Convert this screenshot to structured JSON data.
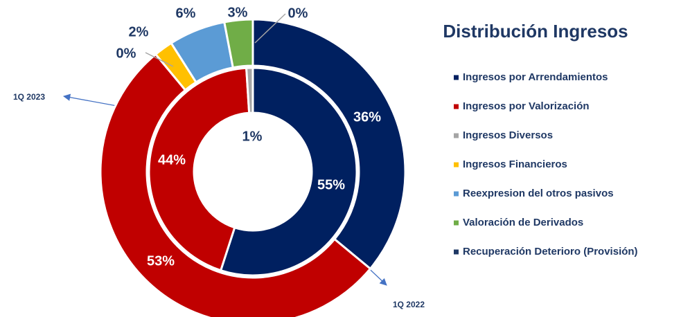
{
  "chart_data": {
    "type": "donut",
    "title": "Distribución Ingresos",
    "categories": [
      "Ingresos por Arrendamientos",
      "Ingresos por Valorización",
      "Ingresos Diversos",
      "Ingresos Financieros",
      "Reexpresion del otros pasivos",
      "Valoración de Derivados",
      "Recuperación Deterioro (Provisión)"
    ],
    "colors": [
      "#002060",
      "#c00000",
      "#a5a5a5",
      "#ffc000",
      "#5b9bd5",
      "#70ad47",
      "#1f3864"
    ],
    "series": [
      {
        "name": "1Q 2023",
        "values": [
          36,
          53,
          0,
          2,
          6,
          3,
          0
        ],
        "value_labels": [
          "36%",
          "53%",
          "0%",
          "2%",
          "6%",
          "3%",
          "0%"
        ]
      },
      {
        "name": "1Q 2022",
        "values": [
          55,
          44,
          1,
          0,
          0,
          0,
          0
        ],
        "value_labels": [
          "55%",
          "44%",
          "1%",
          null,
          null,
          null,
          null
        ]
      }
    ]
  }
}
